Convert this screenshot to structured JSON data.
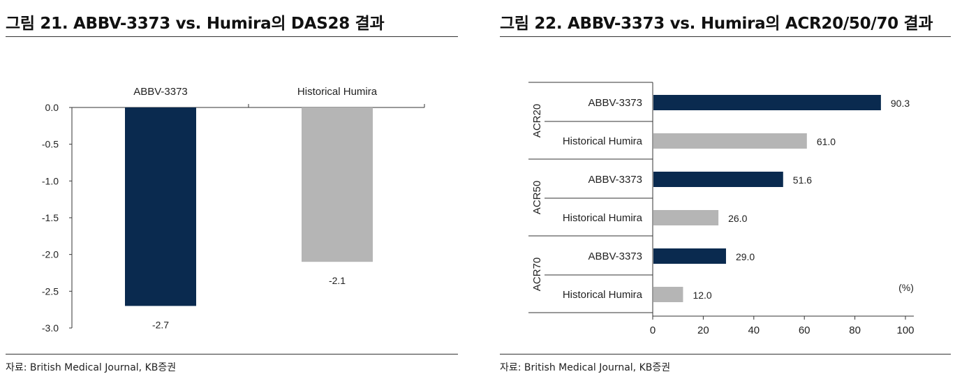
{
  "colors": {
    "navy": "#0a2a4f",
    "gray": "#b5b5b5",
    "axis": "#333333"
  },
  "left": {
    "title": "그림 21. ABBV-3373 vs. Humira의 DAS28 결과",
    "source": "자료: British Medical Journal, KB증권"
  },
  "right": {
    "title": "그림 22. ABBV-3373 vs. Humira의 ACR20/50/70 결과",
    "source": "자료: British Medical Journal, KB증권",
    "unit_note": "(%)"
  },
  "chart_data": [
    {
      "type": "bar",
      "orientation": "vertical",
      "categories": [
        "ABBV-3373",
        "Historical Humira"
      ],
      "values": [
        -2.7,
        -2.1
      ],
      "value_labels": [
        "-2.7",
        "-2.1"
      ],
      "bar_colors": [
        "#0a2a4f",
        "#b5b5b5"
      ],
      "ylim": [
        -3.0,
        0.0
      ],
      "yticks": [
        0.0,
        -0.5,
        -1.0,
        -1.5,
        -2.0,
        -2.5,
        -3.0
      ],
      "ytick_labels": [
        "0.0",
        "-0.5",
        "-1.0",
        "-1.5",
        "-2.0",
        "-2.5",
        "-3.0"
      ],
      "category_position": "top",
      "grid": false,
      "legend": "none"
    },
    {
      "type": "bar",
      "orientation": "horizontal",
      "groups": [
        {
          "name": "ACR20",
          "bars": [
            {
              "label": "ABBV-3373",
              "value": 90.3,
              "value_label": "90.3",
              "color": "#0a2a4f"
            },
            {
              "label": "Historical Humira",
              "value": 61.0,
              "value_label": "61.0",
              "color": "#b5b5b5"
            }
          ]
        },
        {
          "name": "ACR50",
          "bars": [
            {
              "label": "ABBV-3373",
              "value": 51.6,
              "value_label": "51.6",
              "color": "#0a2a4f"
            },
            {
              "label": "Historical Humira",
              "value": 26.0,
              "value_label": "26.0",
              "color": "#b5b5b5"
            }
          ]
        },
        {
          "name": "ACR70",
          "bars": [
            {
              "label": "ABBV-3373",
              "value": 29.0,
              "value_label": "29.0",
              "color": "#0a2a4f"
            },
            {
              "label": "Historical Humira",
              "value": 12.0,
              "value_label": "12.0",
              "color": "#b5b5b5"
            }
          ]
        }
      ],
      "xlim": [
        0,
        100
      ],
      "xticks": [
        0,
        20,
        40,
        60,
        80,
        100
      ],
      "xtick_labels": [
        "0",
        "20",
        "40",
        "60",
        "80",
        "100"
      ],
      "xlabel": "(%)",
      "grid": false,
      "legend": "none"
    }
  ]
}
